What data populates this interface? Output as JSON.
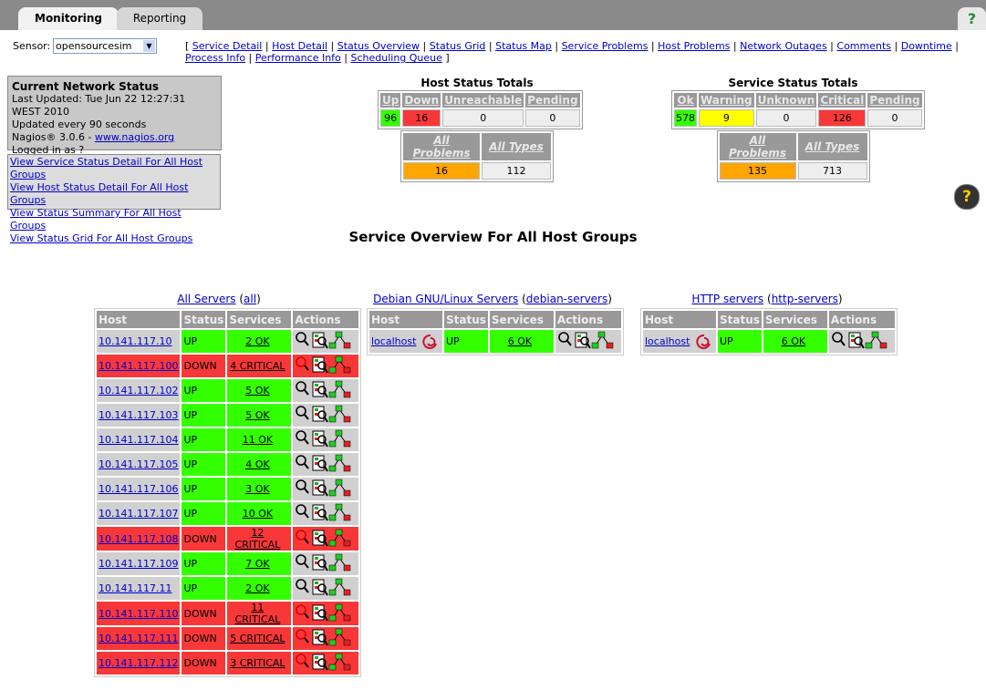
{
  "tabs": [
    "Monitoring",
    "Reporting"
  ],
  "help": "?",
  "sensor": {
    "label": "Sensor:",
    "value": "opensourcesim"
  },
  "nav_links": [
    "Service Detail",
    "Host Detail",
    "Status Overview",
    "Status Grid",
    "Status Map",
    "Service Problems",
    "Host Problems",
    "Network Outages",
    "Comments",
    "Downtime",
    "Process Info",
    "Performance Info",
    "Scheduling Queue"
  ],
  "status_box": {
    "title": "Current Network Status",
    "last_updated": "Last Updated: Tue Jun 22 12:27:31 WEST 2010",
    "interval": "Updated every 90 seconds",
    "version": "Nagios® 3.0.6 -",
    "site": "www.nagios.org",
    "user": "Logged in as ?"
  },
  "view_links": [
    "View Service Status Detail For All Host Groups",
    "View Host Status Detail For All Host Groups",
    "View Status Summary For All Host Groups",
    "View Status Grid For All Host Groups"
  ],
  "host_totals": {
    "title": "Host Status Totals",
    "headers": [
      "Up",
      "Down",
      "Unreachable",
      "Pending"
    ],
    "values": [
      "96",
      "16",
      "0",
      "0"
    ],
    "colors": [
      "#33ff00",
      "#f83838",
      "#eeeeee",
      "#eeeeee"
    ],
    "problem_headers": [
      "All Problems",
      "All Types"
    ],
    "problem_values": [
      "16",
      "112"
    ],
    "problem_colors": [
      "#ffa500",
      "#eeeeee"
    ]
  },
  "service_totals": {
    "title": "Service Status Totals",
    "headers": [
      "Ok",
      "Warning",
      "Unknown",
      "Critical",
      "Pending"
    ],
    "values": [
      "578",
      "9",
      "0",
      "126",
      "0"
    ],
    "colors": [
      "#33ff00",
      "#ffff00",
      "#eeeeee",
      "#f83838",
      "#eeeeee"
    ],
    "problem_headers": [
      "All Problems",
      "All Types"
    ],
    "problem_values": [
      "135",
      "713"
    ],
    "problem_colors": [
      "#ffa500",
      "#eeeeee"
    ]
  },
  "overview_title": "Service Overview For All Host Groups",
  "table_headers": [
    "Host",
    "Status",
    "Services",
    "Actions"
  ],
  "groups": [
    {
      "name": "All Servers",
      "id": "all",
      "rows": [
        {
          "host": "10.141.117.10",
          "status": "UP",
          "services": "2 OK",
          "host_color": "#d0d0d0",
          "status_color": "#33ff00"
        },
        {
          "host": "10.141.117.100",
          "status": "DOWN",
          "services": "4 CRITICAL",
          "host_color": "#f83838",
          "status_color": "#f83838"
        },
        {
          "host": "10.141.117.102",
          "status": "UP",
          "services": "5 OK",
          "host_color": "#d0d0d0",
          "status_color": "#33ff00"
        },
        {
          "host": "10.141.117.103",
          "status": "UP",
          "services": "5 OK",
          "host_color": "#d0d0d0",
          "status_color": "#33ff00"
        },
        {
          "host": "10.141.117.104",
          "status": "UP",
          "services": "11 OK",
          "host_color": "#d0d0d0",
          "status_color": "#33ff00"
        },
        {
          "host": "10.141.117.105",
          "status": "UP",
          "services": "4 OK",
          "host_color": "#d0d0d0",
          "status_color": "#33ff00"
        },
        {
          "host": "10.141.117.106",
          "status": "UP",
          "services": "3 OK",
          "host_color": "#d0d0d0",
          "status_color": "#33ff00"
        },
        {
          "host": "10.141.117.107",
          "status": "UP",
          "services": "10 OK",
          "host_color": "#d0d0d0",
          "status_color": "#33ff00"
        },
        {
          "host": "10.141.117.108",
          "status": "DOWN",
          "services": "12 CRITICAL",
          "host_color": "#f83838",
          "status_color": "#f83838"
        },
        {
          "host": "10.141.117.109",
          "status": "UP",
          "services": "7 OK",
          "host_color": "#d0d0d0",
          "status_color": "#33ff00"
        },
        {
          "host": "10.141.117.11",
          "status": "UP",
          "services": "2 OK",
          "host_color": "#d0d0d0",
          "status_color": "#33ff00"
        },
        {
          "host": "10.141.117.110",
          "status": "DOWN",
          "services": "11 CRITICAL",
          "host_color": "#f83838",
          "status_color": "#f83838"
        },
        {
          "host": "10.141.117.111",
          "status": "DOWN",
          "services": "5 CRITICAL",
          "host_color": "#f83838",
          "status_color": "#f83838"
        },
        {
          "host": "10.141.117.112",
          "status": "DOWN",
          "services": "3 CRITICAL",
          "host_color": "#f83838",
          "status_color": "#f83838"
        }
      ]
    },
    {
      "name": "Debian GNU/Linux Servers",
      "id": "debian-servers",
      "rows": [
        {
          "host": "localhost",
          "status": "UP",
          "services": "6 OK",
          "host_color": "#d0d0d0",
          "status_color": "#33ff00"
        }
      ]
    },
    {
      "name": "HTTP servers",
      "id": "http-servers",
      "rows": [
        {
          "host": "localhost",
          "status": "UP",
          "services": "6 OK",
          "host_color": "#d0d0d0",
          "status_color": "#33ff00"
        }
      ]
    }
  ]
}
